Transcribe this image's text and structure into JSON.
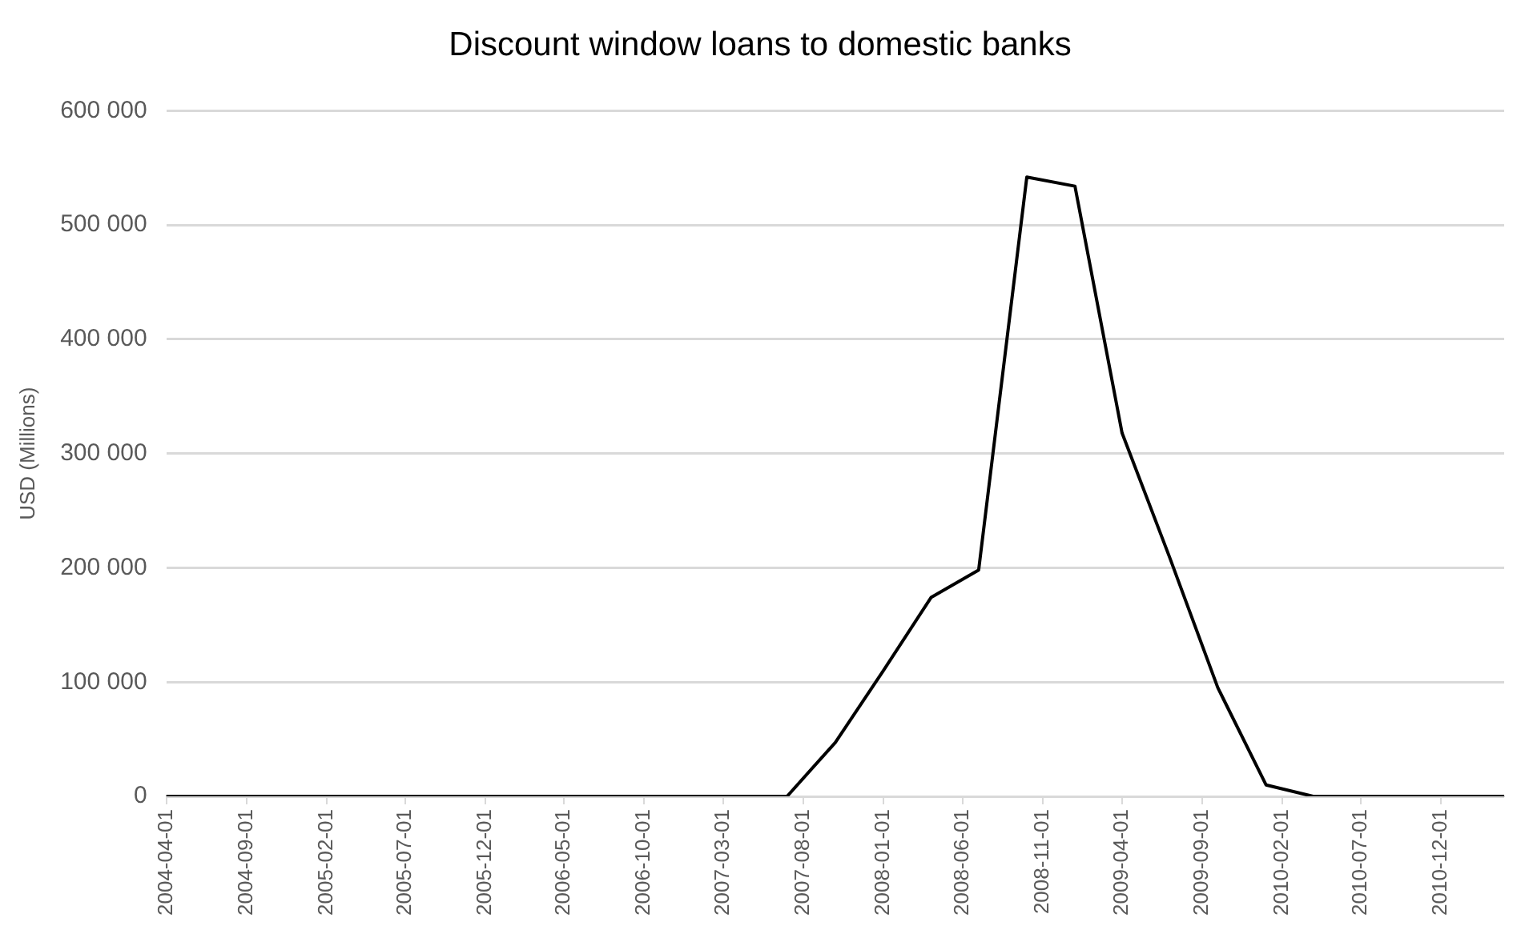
{
  "chart_data": {
    "type": "line",
    "title": "Discount window loans to domestic banks",
    "ylabel": "USD (Millions)",
    "x": [
      "2004-04-01",
      "2004-07-01",
      "2004-10-01",
      "2005-01-01",
      "2005-04-01",
      "2005-07-01",
      "2005-10-01",
      "2006-01-01",
      "2006-04-01",
      "2006-07-01",
      "2006-10-01",
      "2007-01-01",
      "2007-04-01",
      "2007-07-01",
      "2007-10-01",
      "2008-01-01",
      "2008-04-01",
      "2008-07-01",
      "2008-10-01",
      "2009-01-01",
      "2009-04-01",
      "2009-07-01",
      "2009-10-01",
      "2010-01-01",
      "2010-04-01",
      "2010-07-01",
      "2010-10-01",
      "2011-01-01",
      "2011-04-01"
    ],
    "series": [
      {
        "color": "#000000",
        "values": [
          0,
          0,
          0,
          0,
          0,
          0,
          0,
          0,
          0,
          0,
          0,
          0,
          0,
          0,
          47000,
          110000,
          174000,
          198000,
          542000,
          534000,
          318000,
          209000,
          95000,
          10000,
          0,
          0,
          0,
          0,
          0
        ]
      }
    ],
    "xlim": [
      "2004-04-01",
      "2011-04-01"
    ],
    "xticks": [
      "2004-04-01",
      "2004-09-01",
      "2005-02-01",
      "2005-07-01",
      "2005-12-01",
      "2006-05-01",
      "2006-10-01",
      "2007-03-01",
      "2007-08-01",
      "2008-01-01",
      "2008-06-01",
      "2008-11-01",
      "2009-04-01",
      "2009-09-01",
      "2010-02-01",
      "2010-07-01",
      "2010-12-01"
    ],
    "ylim": [
      0,
      600000
    ],
    "yticks": [
      0,
      {
        "value": 100000,
        "label": "100 000"
      },
      {
        "value": 200000,
        "label": "200 000"
      },
      {
        "value": 300000,
        "label": "300 000"
      },
      {
        "value": 400000,
        "label": "400 000"
      },
      {
        "value": 500000,
        "label": "500 000"
      },
      {
        "value": 600000,
        "label": "600 000"
      }
    ],
    "grid": "y",
    "legend": false,
    "marker": "none",
    "line_style": "solid"
  }
}
